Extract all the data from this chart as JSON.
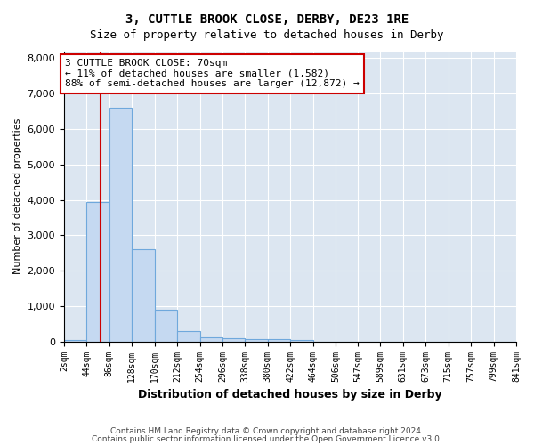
{
  "title1": "3, CUTTLE BROOK CLOSE, DERBY, DE23 1RE",
  "title2": "Size of property relative to detached houses in Derby",
  "xlabel": "Distribution of detached houses by size in Derby",
  "ylabel": "Number of detached properties",
  "bin_edges": [
    2,
    44,
    86,
    128,
    170,
    212,
    254,
    296,
    338,
    380,
    422,
    464,
    506,
    547,
    589,
    631,
    673,
    715,
    757,
    799,
    841
  ],
  "bin_labels": [
    "2sqm",
    "44sqm",
    "86sqm",
    "128sqm",
    "170sqm",
    "212sqm",
    "254sqm",
    "296sqm",
    "338sqm",
    "380sqm",
    "422sqm",
    "464sqm",
    "506sqm",
    "547sqm",
    "589sqm",
    "631sqm",
    "673sqm",
    "715sqm",
    "757sqm",
    "799sqm",
    "841sqm"
  ],
  "bar_heights": [
    50,
    3950,
    6600,
    2600,
    900,
    300,
    130,
    95,
    80,
    60,
    55,
    0,
    0,
    0,
    0,
    0,
    0,
    0,
    0,
    0
  ],
  "bar_color": "#c5d9f1",
  "bar_edgecolor": "#6fa8dc",
  "property_sqm": 70,
  "property_line_color": "#cc0000",
  "annotation_line1": "3 CUTTLE BROOK CLOSE: 70sqm",
  "annotation_line2": "← 11% of detached houses are smaller (1,582)",
  "annotation_line3": "88% of semi-detached houses are larger (12,872) →",
  "annotation_box_color": "#ffffff",
  "annotation_box_edgecolor": "#cc0000",
  "ylim": [
    0,
    8200
  ],
  "yticks": [
    0,
    1000,
    2000,
    3000,
    4000,
    5000,
    6000,
    7000,
    8000
  ],
  "plot_background": "#dce6f1",
  "footer1": "Contains HM Land Registry data © Crown copyright and database right 2024.",
  "footer2": "Contains public sector information licensed under the Open Government Licence v3.0."
}
